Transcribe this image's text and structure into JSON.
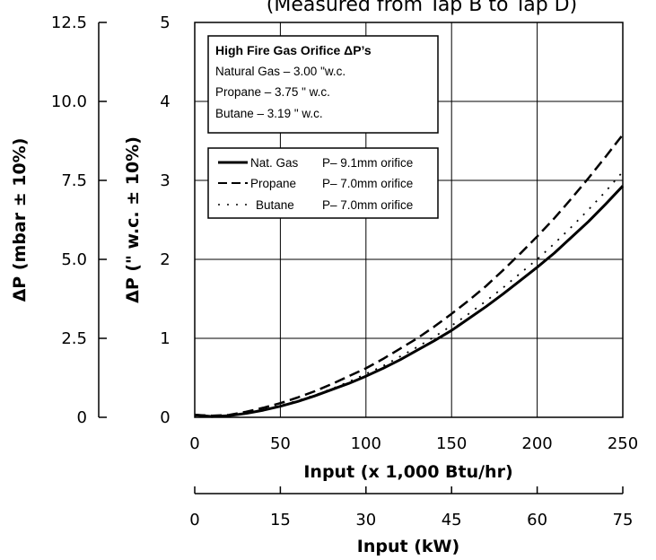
{
  "chart_data": {
    "type": "line",
    "title": "(Measured from Tap B to Tap D)",
    "xlabel": "Input (x 1,000 Btu/hr)",
    "xlim": [
      0,
      250
    ],
    "x_ticks": [
      "0",
      "50",
      "100",
      "150",
      "200",
      "250"
    ],
    "x2label": "Input (kW)",
    "x2_ticks": [
      "0",
      "15",
      "30",
      "45",
      "60",
      "75"
    ],
    "ylabel": "ΔP (\" w.c. ± 10%)",
    "ylim": [
      0,
      5
    ],
    "y_ticks": [
      "0",
      "1",
      "2",
      "3",
      "4",
      "5"
    ],
    "y2label": "ΔP (mbar ± 10%)",
    "y2_ticks": [
      "0",
      "2.5",
      "5.0",
      "7.5",
      "10.0",
      "12.5"
    ],
    "grid": true,
    "orifice_box": {
      "title": "High Fire Gas Orifice ΔP’s",
      "lines": [
        "Natural Gas – 3.00 \"w.c.",
        "Propane – 3.75 \" w.c.",
        "Butane – 3.19 \" w.c."
      ]
    },
    "legend_position": "top-left",
    "series": [
      {
        "name": "Nat. Gas",
        "note": "P– 9.1mm orifice",
        "style": "solid",
        "x": [
          0,
          10,
          20,
          30,
          40,
          50,
          60,
          70,
          80,
          90,
          100,
          110,
          120,
          130,
          140,
          150,
          160,
          170,
          180,
          190,
          200,
          210,
          220,
          230,
          240,
          250
        ],
        "y": [
          0.03,
          0.01,
          0.02,
          0.05,
          0.09,
          0.14,
          0.2,
          0.27,
          0.35,
          0.43,
          0.52,
          0.62,
          0.73,
          0.85,
          0.97,
          1.1,
          1.25,
          1.4,
          1.56,
          1.73,
          1.9,
          2.08,
          2.28,
          2.48,
          2.7,
          2.93
        ]
      },
      {
        "name": "Propane",
        "note": "P– 7.0mm orifice",
        "style": "dashed",
        "x": [
          0,
          10,
          20,
          30,
          40,
          50,
          60,
          70,
          80,
          90,
          100,
          110,
          120,
          130,
          140,
          150,
          160,
          170,
          180,
          190,
          200,
          210,
          220,
          230,
          240,
          250
        ],
        "y": [
          0.03,
          0.02,
          0.03,
          0.07,
          0.12,
          0.18,
          0.25,
          0.33,
          0.42,
          0.52,
          0.62,
          0.74,
          0.87,
          1.0,
          1.15,
          1.31,
          1.48,
          1.66,
          1.86,
          2.07,
          2.29,
          2.52,
          2.77,
          3.03,
          3.3,
          3.58
        ]
      },
      {
        "name": "Butane",
        "note": "P– 7.0mm orifice",
        "style": "dotted",
        "x": [
          0,
          10,
          20,
          30,
          40,
          50,
          60,
          70,
          80,
          90,
          100,
          110,
          120,
          130,
          140,
          150,
          160,
          170,
          180,
          190,
          200,
          210,
          220,
          230,
          240,
          250
        ],
        "y": [
          0.02,
          0.01,
          0.02,
          0.05,
          0.1,
          0.15,
          0.21,
          0.28,
          0.36,
          0.45,
          0.55,
          0.65,
          0.77,
          0.89,
          1.02,
          1.16,
          1.31,
          1.47,
          1.64,
          1.82,
          2.0,
          2.2,
          2.41,
          2.63,
          2.86,
          3.11
        ]
      }
    ]
  }
}
